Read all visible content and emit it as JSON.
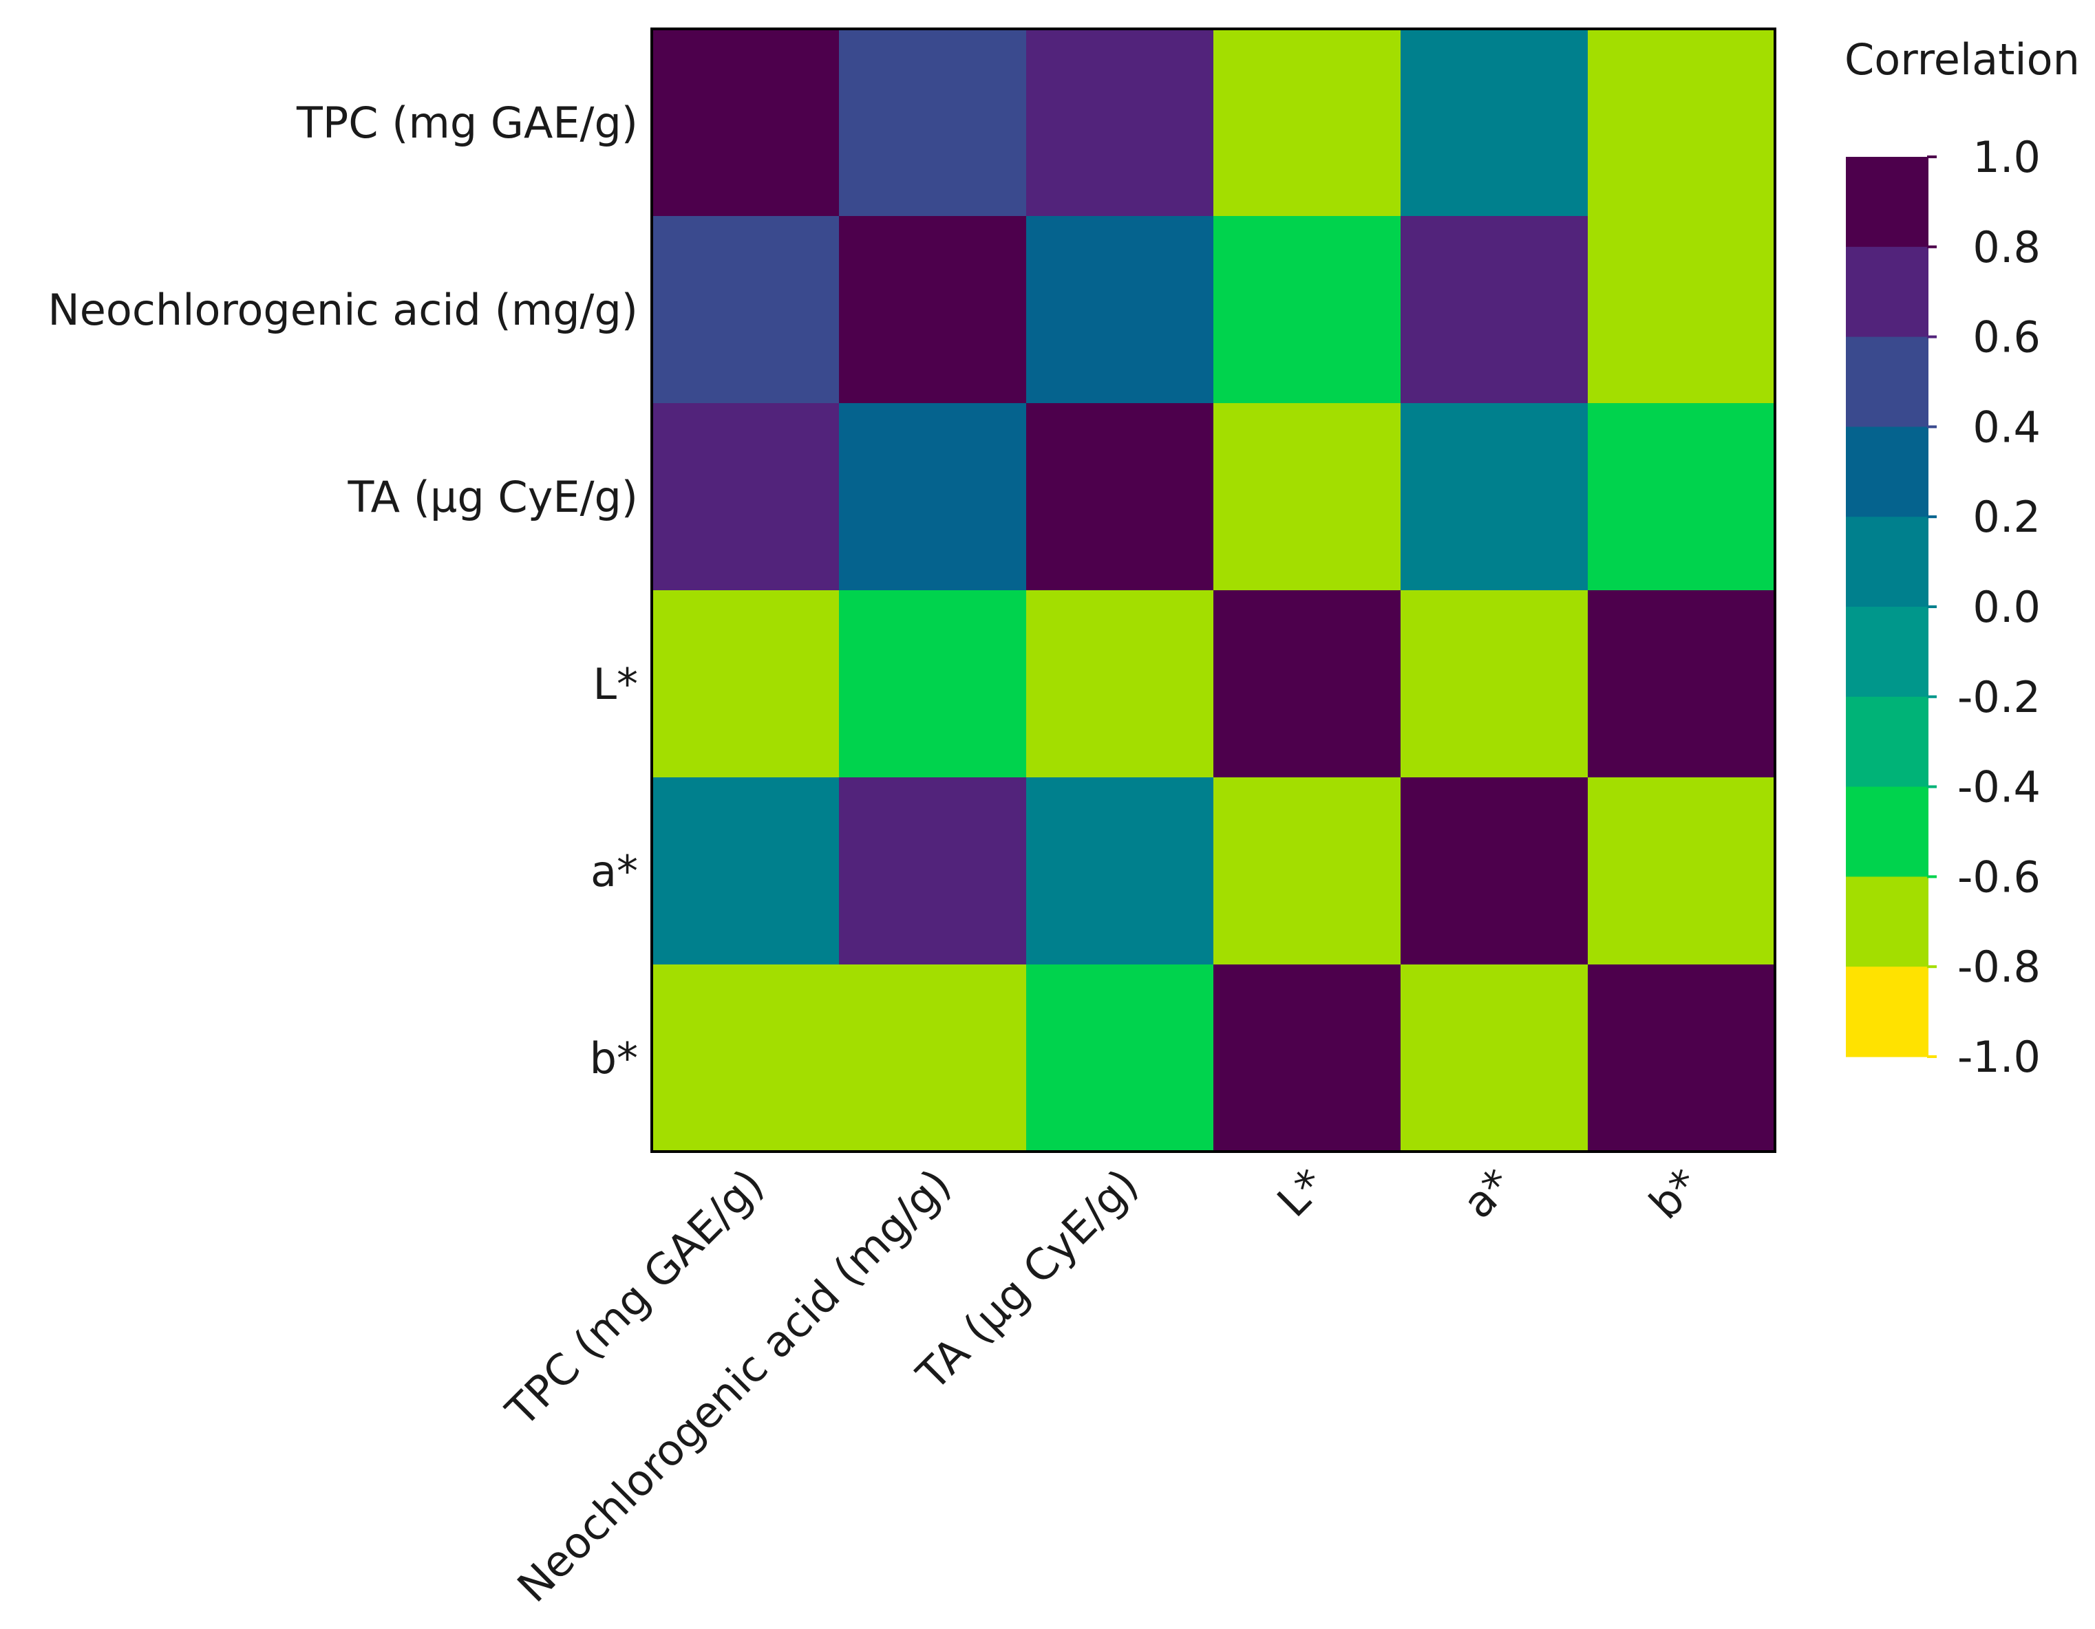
{
  "chart_data": {
    "type": "heatmap",
    "rows": [
      "TPC (mg GAE/g)",
      "Neochlorogenic acid (mg/g)",
      "TA (µg CyE/g)",
      "L*",
      "a*",
      "b*"
    ],
    "columns": [
      "TPC (mg GAE/g)",
      "Neochlorogenic acid (mg/g)",
      "TA (µg CyE/g)",
      "L*",
      "a*",
      "b*"
    ],
    "values": [
      [
        1.0,
        0.5,
        0.7,
        -0.7,
        0.1,
        -0.7
      ],
      [
        0.5,
        1.0,
        0.3,
        -0.5,
        0.7,
        -0.7
      ],
      [
        0.7,
        0.3,
        1.0,
        -0.7,
        0.1,
        -0.5
      ],
      [
        -0.7,
        -0.5,
        -0.7,
        1.0,
        -0.7,
        1.0
      ],
      [
        0.1,
        0.7,
        0.1,
        -0.7,
        1.0,
        -0.7
      ],
      [
        -0.7,
        -0.7,
        -0.5,
        1.0,
        -0.7,
        1.0
      ]
    ],
    "legend": {
      "title": "Correlation",
      "ticks": [
        "1.0",
        "0.8",
        "0.6",
        "0.4",
        "0.2",
        "0.0",
        "-0.2",
        "-0.4",
        "-0.6",
        "-0.8",
        "-1.0"
      ],
      "range": [
        -1.0,
        1.0
      ],
      "placement": "right",
      "bands": [
        {
          "from": 0.8,
          "to": 1.0,
          "color": "#4d004c"
        },
        {
          "from": 0.6,
          "to": 0.8,
          "color": "#52237b"
        },
        {
          "from": 0.4,
          "to": 0.6,
          "color": "#3a4a8e"
        },
        {
          "from": 0.2,
          "to": 0.4,
          "color": "#05638e"
        },
        {
          "from": 0.0,
          "to": 0.2,
          "color": "#00808d"
        },
        {
          "from": -0.2,
          "to": 0.0,
          "color": "#00978b"
        },
        {
          "from": -0.4,
          "to": -0.2,
          "color": "#00b377"
        },
        {
          "from": -0.6,
          "to": -0.4,
          "color": "#00d34d"
        },
        {
          "from": -0.8,
          "to": -0.6,
          "color": "#a3de00"
        },
        {
          "from": -1.0,
          "to": -0.8,
          "color": "#ffe200"
        }
      ]
    }
  }
}
